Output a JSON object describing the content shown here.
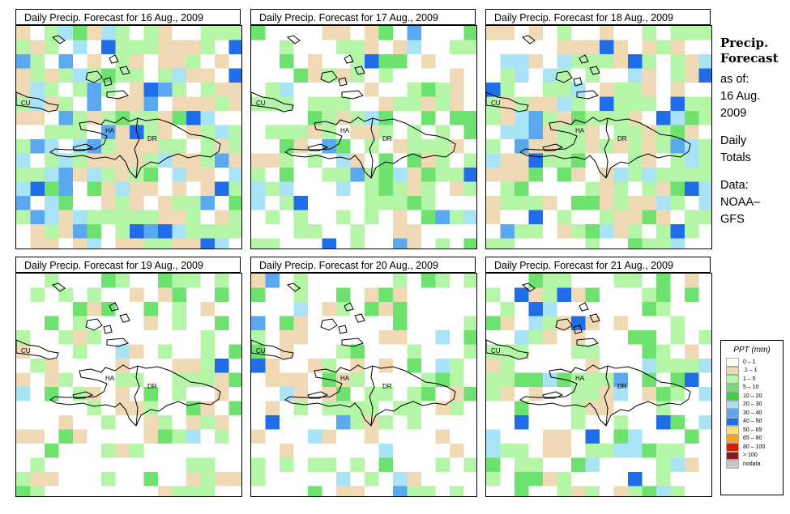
{
  "panels": [
    {
      "title": "Daily Precip. Forecast for  16 Aug., 2009",
      "wet": 0.78,
      "blue": 0.1,
      "seed": 11
    },
    {
      "title": "Daily Precip. Forecast for  17 Aug., 2009",
      "wet": 0.55,
      "blue": 0.04,
      "seed": 23
    },
    {
      "title": "Daily Precip. Forecast for  18 Aug., 2009",
      "wet": 0.72,
      "blue": 0.08,
      "seed": 37
    },
    {
      "title": "Daily Precip. Forecast for  19 Aug., 2009",
      "wet": 0.45,
      "blue": 0.01,
      "seed": 41
    },
    {
      "title": "Daily Precip. Forecast for  20 Aug., 2009",
      "wet": 0.4,
      "blue": 0.02,
      "seed": 53
    },
    {
      "title": "Daily Precip. Forecast for  21 Aug., 2009",
      "wet": 0.5,
      "blue": 0.03,
      "seed": 67
    }
  ],
  "map_labels": {
    "cuba": "CU",
    "haiti": "HA",
    "dominican_republic": "DR"
  },
  "sidebar": {
    "title_line1": "Precip.",
    "title_line2": "Forecast",
    "asof": "as of:",
    "date_line1": "16 Aug.",
    "date_line2": "2009",
    "totals_line1": "Daily",
    "totals_line2": "Totals",
    "data_line1": "Data:",
    "data_line2": "NOAA–",
    "data_line3": "GFS"
  },
  "legend": {
    "title": "PPT (mm)",
    "items": [
      {
        "label": "0 – 1",
        "color": "#ffffff"
      },
      {
        "label": ".1 – 1",
        "color": "#f0d9b5"
      },
      {
        "label": "1 – 5",
        "color": "#b4f5a8"
      },
      {
        "label": "5 – 10",
        "color": "#6ee26e"
      },
      {
        "label": "10 – 20",
        "color": "#3ecf3e"
      },
      {
        "label": "20 – 30",
        "color": "#a8e4f5"
      },
      {
        "label": "30 – 40",
        "color": "#5aa8f0"
      },
      {
        "label": "40 – 50",
        "color": "#1f6ee8"
      },
      {
        "label": "50 – 65",
        "color": "#ffe070"
      },
      {
        "label": "65 – 80",
        "color": "#f8a020"
      },
      {
        "label": "80 – 100",
        "color": "#d02000"
      },
      {
        "label": "> 100",
        "color": "#8b1a1a"
      },
      {
        "label": "nodata",
        "color": "#c8c8c8"
      }
    ]
  },
  "colors": {
    "white": "#ffffff",
    "tan": "#f0d9b5",
    "light_green": "#b4f5a8",
    "green": "#6ee26e",
    "light_blue": "#a8e4f5",
    "blue": "#5aa8f0",
    "dark_blue": "#1f6ee8"
  }
}
